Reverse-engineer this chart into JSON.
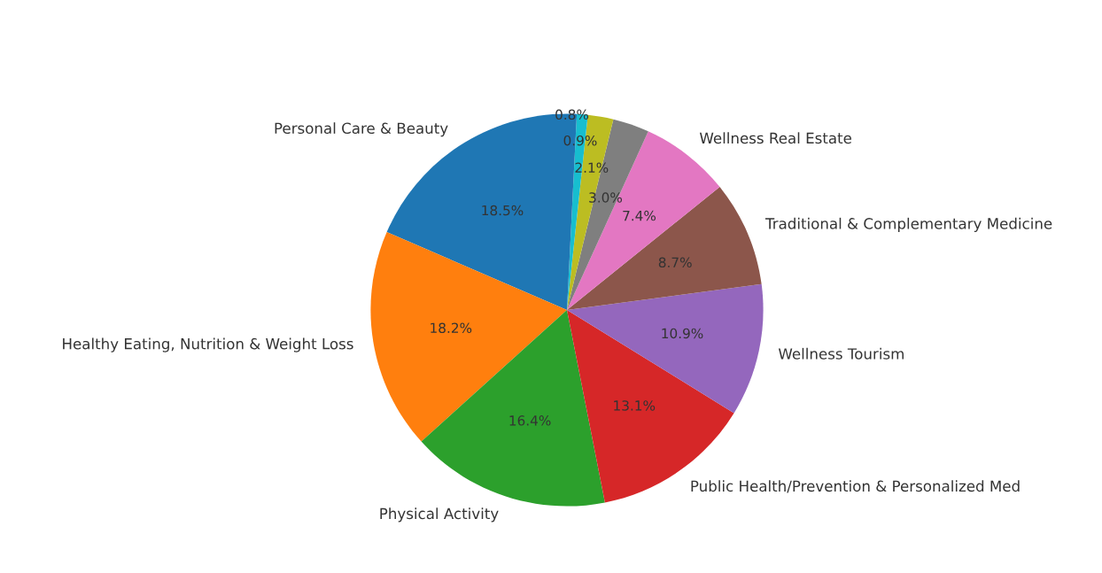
{
  "chart_data": {
    "type": "pie",
    "categories": [
      "Personal Care & Beauty",
      "Healthy Eating, Nutrition & Weight Loss",
      "Physical Activity",
      "Public Health/Prevention & Personalized Med",
      "Wellness Tourism",
      "Traditional & Complementary Medicine",
      "Wellness Real Estate",
      null,
      null,
      null,
      null
    ],
    "values": [
      18.5,
      18.2,
      16.4,
      13.1,
      10.9,
      8.7,
      7.4,
      3.0,
      2.1,
      0.9,
      0.8
    ],
    "value_labels": [
      "18.5%",
      "18.2%",
      "16.4%",
      "13.1%",
      "10.9%",
      "8.7%",
      "7.4%",
      "3.0%",
      "2.1%",
      "0.9%",
      "0.8%"
    ],
    "colors": [
      "#1f77b4",
      "#ff7f0e",
      "#2ca02c",
      "#d62728",
      "#9467bd",
      "#8c564b",
      "#e377c2",
      "#7f7f7f",
      "#bcbd22",
      "#17becf",
      "#1f77b4"
    ],
    "legend": false
  }
}
